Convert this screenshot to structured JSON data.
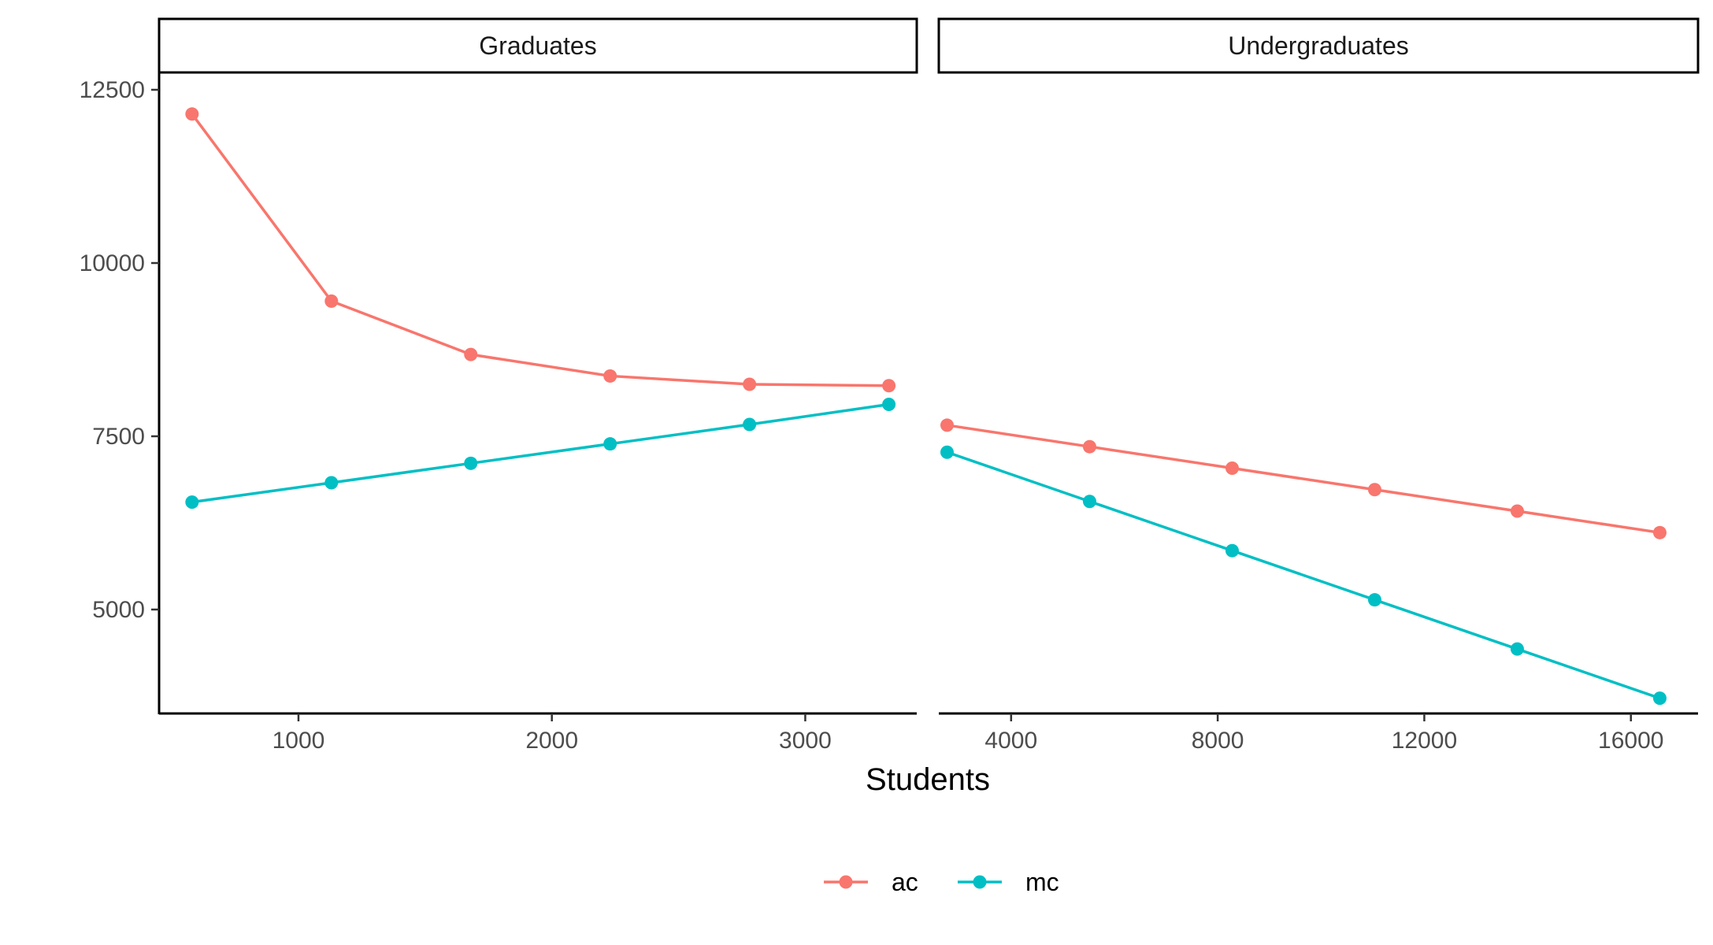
{
  "chart_data": {
    "type": "line",
    "xlabel": "Students",
    "ylabel": "",
    "ylim": [
      3500,
      12750
    ],
    "y_ticks": [
      5000,
      7500,
      10000,
      12500
    ],
    "grid": false,
    "legend_position": "bottom",
    "series_meta": [
      {
        "name": "ac",
        "color": "#F8766D"
      },
      {
        "name": "mc",
        "color": "#00BFC4"
      }
    ],
    "panels": [
      {
        "title": "Graduates",
        "xlim": [
          450,
          3440
        ],
        "x_ticks": [
          1000,
          2000,
          3000
        ],
        "x": [
          580,
          1130,
          1680,
          2230,
          2780,
          3330
        ],
        "series": [
          {
            "name": "ac",
            "values": [
              12150,
              9450,
              8680,
              8370,
              8250,
              8230
            ]
          },
          {
            "name": "mc",
            "values": [
              6550,
              6830,
              7110,
              7390,
              7670,
              7960
            ]
          }
        ]
      },
      {
        "title": "Undergraduates",
        "xlim": [
          2600,
          17300
        ],
        "x_ticks": [
          4000,
          8000,
          12000,
          16000
        ],
        "x": [
          2760,
          5520,
          8280,
          11040,
          13800,
          16560
        ],
        "series": [
          {
            "name": "ac",
            "values": [
              7660,
              7350,
              7040,
              6730,
              6420,
              6110
            ]
          },
          {
            "name": "mc",
            "values": [
              7270,
              6560,
              5850,
              5140,
              4430,
              3720
            ]
          }
        ]
      }
    ]
  }
}
